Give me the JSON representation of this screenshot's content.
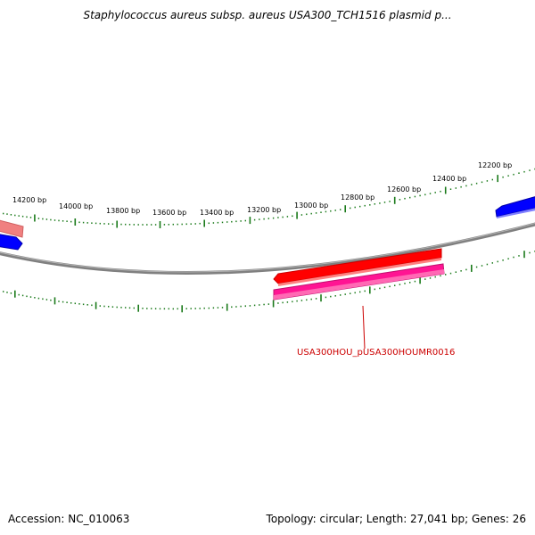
{
  "title": "Staphylococcus aureus subsp. aureus USA300_TCH1516 plasmid p...",
  "tick_labels": [
    "14200 bp",
    "14000 bp",
    "13800 bp",
    "13600 bp",
    "13400 bp",
    "13200 bp",
    "13000 bp",
    "12800 bp",
    "12600 bp",
    "12400 bp",
    "12200 bp"
  ],
  "feature_label": "USA300HOU_pUSA300HOUMR0016",
  "footer": {
    "accession": "Accession: NC_010063",
    "summary": "Topology: circular; Length: 27,041 bp; Genes: 26"
  },
  "colors": {
    "backbone": "#808080",
    "tick": "#1a7a1a",
    "forward_gene": "#ff0000",
    "forward_gene_faded": "#f08080",
    "reverse_gene": "#0000ff",
    "cds": "#ff1493",
    "label": "#cc0000"
  }
}
